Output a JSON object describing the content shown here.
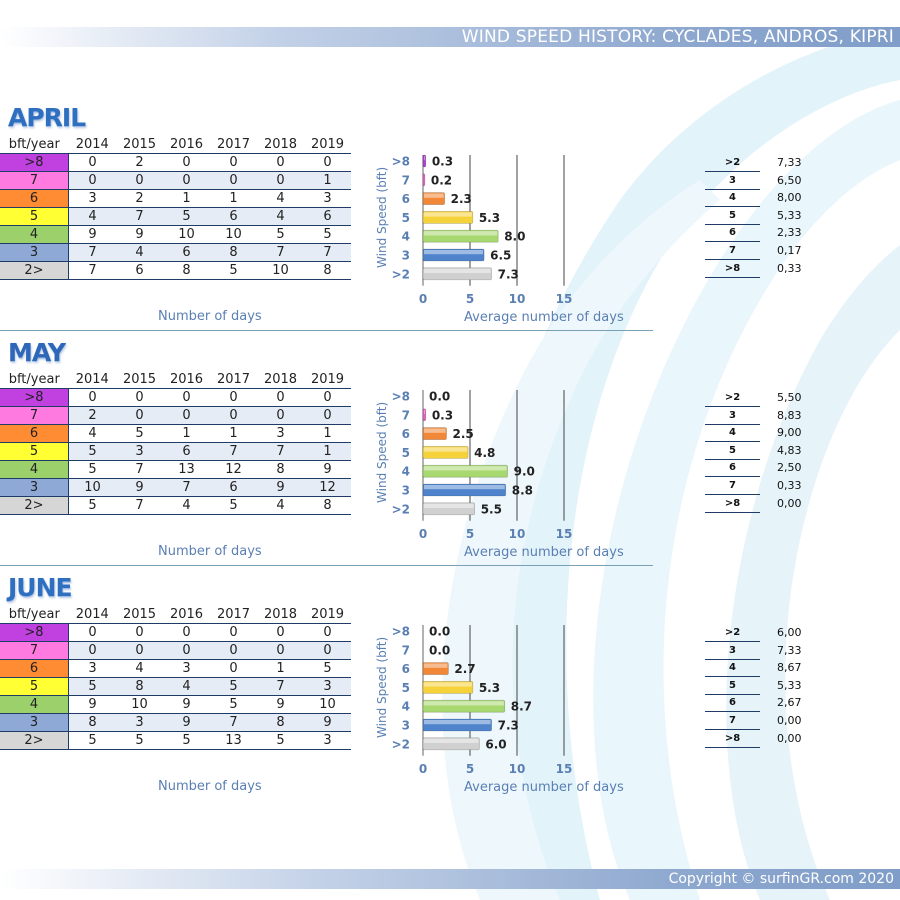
{
  "header": {
    "title": "WIND SPEED HISTORY: CYCLADES, ANDROS, KIPRI"
  },
  "footer": {
    "copyright": "Copyright © surfinGR.com 2020"
  },
  "colors": {
    "accent": "#2e6fc0",
    "axis": "#5a7fb3"
  },
  "legend_colors": {
    ">8": "#c040e0",
    "7": "#ff7ae0",
    "6": "#ff8c33",
    "5": "#ffff33",
    "4": "#9bd06a",
    "3": "#8fa9d6",
    "2>": "#d6d6d6"
  },
  "bar_colors": {
    ">8": "#b23fd0",
    "7": "#e860c0",
    "6": "#f08838",
    "5": "#f6d23a",
    "4": "#a8d870",
    "3": "#4f84cc",
    ">2": "#d0d0d0"
  },
  "table_headers": [
    "bft/year",
    "2014",
    "2015",
    "2016",
    "2017",
    "2018",
    "2019"
  ],
  "row_labels": [
    ">8",
    "7",
    "6",
    "5",
    "4",
    "3",
    "2>"
  ],
  "captions": {
    "left": "Number of days",
    "right": "Average number of days"
  },
  "chart_ylabel": "Wind Speed (bft)",
  "sections": {
    "april": {
      "title": "APRIL",
      "rows": [
        [
          0,
          2,
          0,
          0,
          0,
          0
        ],
        [
          0,
          0,
          0,
          0,
          0,
          1
        ],
        [
          3,
          2,
          1,
          1,
          4,
          3
        ],
        [
          4,
          7,
          5,
          6,
          4,
          6
        ],
        [
          9,
          9,
          10,
          10,
          5,
          5
        ],
        [
          7,
          4,
          6,
          8,
          7,
          7
        ],
        [
          7,
          6,
          8,
          5,
          10,
          8
        ]
      ],
      "avg": [
        {
          "k": ">2",
          "v": "7,33"
        },
        {
          "k": "3",
          "v": "6,50"
        },
        {
          "k": "4",
          "v": "8,00"
        },
        {
          "k": "5",
          "v": "5,33"
        },
        {
          "k": "6",
          "v": "2,33"
        },
        {
          "k": "7",
          "v": "0,17"
        },
        {
          "k": ">8",
          "v": "0,33"
        }
      ]
    },
    "may": {
      "title": "MAY",
      "rows": [
        [
          0,
          0,
          0,
          0,
          0,
          0
        ],
        [
          2,
          0,
          0,
          0,
          0,
          0
        ],
        [
          4,
          5,
          1,
          1,
          3,
          1
        ],
        [
          5,
          3,
          6,
          7,
          7,
          1
        ],
        [
          5,
          7,
          13,
          12,
          8,
          9
        ],
        [
          10,
          9,
          7,
          6,
          9,
          12
        ],
        [
          5,
          7,
          4,
          5,
          4,
          8
        ]
      ],
      "avg": [
        {
          "k": ">2",
          "v": "5,50"
        },
        {
          "k": "3",
          "v": "8,83"
        },
        {
          "k": "4",
          "v": "9,00"
        },
        {
          "k": "5",
          "v": "4,83"
        },
        {
          "k": "6",
          "v": "2,50"
        },
        {
          "k": "7",
          "v": "0,33"
        },
        {
          "k": ">8",
          "v": "0,00"
        }
      ]
    },
    "june": {
      "title": "JUNE",
      "rows": [
        [
          0,
          0,
          0,
          0,
          0,
          0
        ],
        [
          0,
          0,
          0,
          0,
          0,
          0
        ],
        [
          3,
          4,
          3,
          0,
          1,
          5
        ],
        [
          5,
          8,
          4,
          5,
          7,
          3
        ],
        [
          9,
          10,
          9,
          5,
          9,
          10
        ],
        [
          8,
          3,
          9,
          7,
          8,
          9
        ],
        [
          5,
          5,
          5,
          13,
          5,
          3
        ]
      ],
      "avg": [
        {
          "k": ">2",
          "v": "6,00"
        },
        {
          "k": "3",
          "v": "7,33"
        },
        {
          "k": "4",
          "v": "8,67"
        },
        {
          "k": "5",
          "v": "5,33"
        },
        {
          "k": "6",
          "v": "2,67"
        },
        {
          "k": "7",
          "v": "0,00"
        },
        {
          "k": ">8",
          "v": "0,00"
        }
      ]
    }
  },
  "chart_data": [
    {
      "type": "bar",
      "orientation": "horizontal",
      "categories": [
        ">8",
        "7",
        "6",
        "5",
        "4",
        "3",
        ">2"
      ],
      "values": [
        0.3,
        0.2,
        2.3,
        5.3,
        8.0,
        6.5,
        7.3
      ],
      "labels": [
        "0.3",
        "0.2",
        "2.3",
        "5.3",
        "8.0",
        "6.5",
        "7.3"
      ],
      "xlabel": "Average number of days",
      "ylabel": "Wind Speed (bft)",
      "xlim": [
        0,
        15
      ],
      "xticks": [
        0,
        5,
        10,
        15
      ],
      "grid": true
    },
    {
      "type": "bar",
      "orientation": "horizontal",
      "categories": [
        ">8",
        "7",
        "6",
        "5",
        "4",
        "3",
        ">2"
      ],
      "values": [
        0.0,
        0.3,
        2.5,
        4.8,
        9.0,
        8.8,
        5.5
      ],
      "labels": [
        "0.0",
        "0.3",
        "2.5",
        "4.8",
        "9.0",
        "8.8",
        "5.5"
      ],
      "xlabel": "Average number of days",
      "ylabel": "Wind Speed (bft)",
      "xlim": [
        0,
        15
      ],
      "xticks": [
        0,
        5,
        10,
        15
      ],
      "grid": true
    },
    {
      "type": "bar",
      "orientation": "horizontal",
      "categories": [
        ">8",
        "7",
        "6",
        "5",
        "4",
        "3",
        ">2"
      ],
      "values": [
        0.0,
        0.0,
        2.7,
        5.3,
        8.7,
        7.3,
        6.0
      ],
      "labels": [
        "0.0",
        "0.0",
        "2.7",
        "5.3",
        "8.7",
        "7.3",
        "6.0"
      ],
      "xlabel": "Average number of days",
      "ylabel": "Wind Speed (bft)",
      "xlim": [
        0,
        15
      ],
      "xticks": [
        0,
        5,
        10,
        15
      ],
      "grid": true
    }
  ]
}
